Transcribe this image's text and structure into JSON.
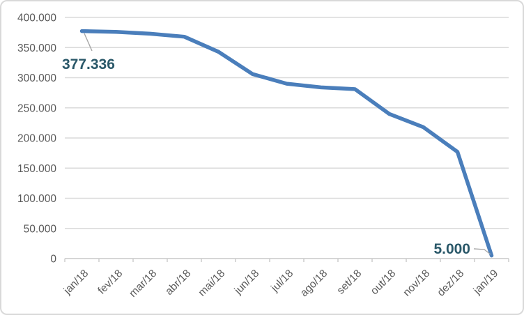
{
  "colors": {
    "series_line": "#4A7EBB",
    "data_label_text": "#2A5869",
    "axis_text": "#595959",
    "gridline": "#DADADA",
    "axis_line": "#C9C9C9",
    "leader_line": "#A6A6A6",
    "chart_background": "#FFFFFF",
    "chart_border": "#D9D9D9"
  },
  "chart_data": {
    "type": "line",
    "title": "",
    "xlabel": "",
    "ylabel": "",
    "legend": "none",
    "grid": true,
    "categories": [
      "jan/18",
      "fev/18",
      "mar/18",
      "abr/18",
      "mai/18",
      "jun/18",
      "jul/18",
      "ago/18",
      "set/18",
      "out/18",
      "nov/18",
      "dez/18",
      "jan/19"
    ],
    "values": [
      377336,
      376000,
      373000,
      368000,
      343000,
      306000,
      290000,
      284000,
      281000,
      240000,
      218000,
      177000,
      5000
    ],
    "ylim": [
      0,
      400000
    ],
    "ytick_step": 50000,
    "ytick_labels": [
      "0",
      "50.000",
      "100.000",
      "150.000",
      "200.000",
      "250.000",
      "300.000",
      "350.000",
      "400.000"
    ],
    "data_labels": [
      {
        "index": 0,
        "text": "377.336"
      },
      {
        "index": 12,
        "text": "5.000"
      }
    ]
  }
}
